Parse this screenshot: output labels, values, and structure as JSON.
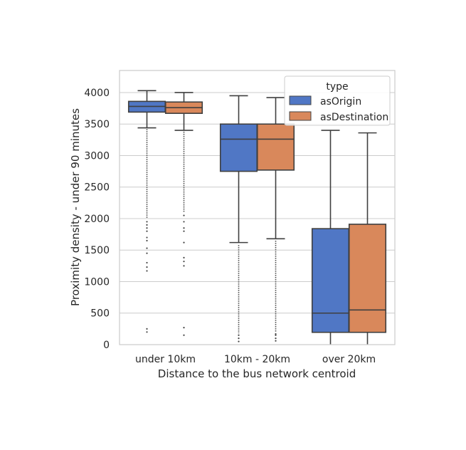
{
  "chart_data": {
    "type": "boxplot",
    "xlabel": "Distance to the bus network centroid",
    "ylabel": "Proximity density - under 90 minutes",
    "ylim": [
      0,
      4350
    ],
    "yticks": [
      0,
      500,
      1000,
      1500,
      2000,
      2500,
      3000,
      3500,
      4000
    ],
    "categories": [
      "under 10km",
      "10km - 20km",
      "over 20km"
    ],
    "grid": "horizontal",
    "legend": {
      "title": "type",
      "placement": "top-right",
      "entries": [
        "asOrigin",
        "asDestination"
      ]
    },
    "series": [
      {
        "name": "asOrigin",
        "color": "#4c72b0",
        "fill": "#5077c5",
        "boxes": [
          {
            "whisker_low": 3440,
            "q1": 3690,
            "median": 3780,
            "q3": 3860,
            "whisker_high": 4030,
            "outliers_dense": [
              2000,
              3420
            ],
            "outliers_sparse": [
              1950,
              1900,
              1850,
              1800,
              1700,
              1650,
              1530,
              1450,
              1300,
              1230,
              1170,
              250,
              200
            ]
          },
          {
            "whisker_low": 1620,
            "q1": 2750,
            "median": 3260,
            "q3": 3500,
            "whisker_high": 3950,
            "outliers_dense": [
              180,
              1580
            ],
            "outliers_sparse": [
              150,
              100,
              50
            ]
          },
          {
            "whisker_low": 0,
            "q1": 195,
            "median": 500,
            "q3": 1840,
            "whisker_high": 3400,
            "outliers_dense": [],
            "outliers_sparse": []
          }
        ]
      },
      {
        "name": "asDestination",
        "color": "#dd8452",
        "fill": "#d9885b",
        "boxes": [
          {
            "whisker_low": 3400,
            "q1": 3670,
            "median": 3760,
            "q3": 3850,
            "whisker_high": 4000,
            "outliers_dense": [
              2100,
              3380
            ],
            "outliers_sparse": [
              2050,
              1950,
              1850,
              1800,
              1620,
              1380,
              1320,
              1250,
              270,
              150
            ]
          },
          {
            "whisker_low": 1680,
            "q1": 2770,
            "median": 3260,
            "q3": 3500,
            "whisker_high": 3920,
            "outliers_dense": [
              200,
              1650
            ],
            "outliers_sparse": [
              170,
              150,
              100,
              60
            ]
          },
          {
            "whisker_low": 0,
            "q1": 195,
            "median": 550,
            "q3": 1910,
            "whisker_high": 3360,
            "outliers_dense": [],
            "outliers_sparse": []
          }
        ]
      }
    ]
  }
}
